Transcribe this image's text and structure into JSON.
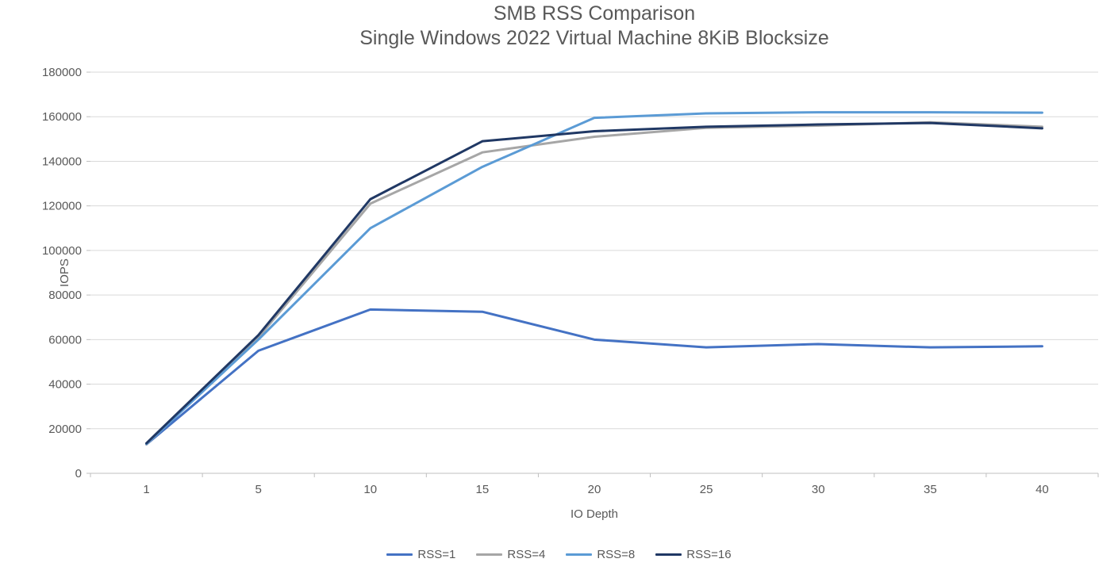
{
  "title": "SMB RSS Comparison",
  "subtitle": "Single Windows 2022 Virtual Machine 8KiB Blocksize",
  "chart_data": {
    "type": "line",
    "x": [
      1,
      5,
      10,
      15,
      20,
      25,
      30,
      35,
      40
    ],
    "xlabel": "IO Depth",
    "ylabel": "IOPS",
    "ylim": [
      0,
      180000
    ],
    "ytick_step": 20000,
    "grid": true,
    "legend_position": "bottom",
    "series": [
      {
        "name": "RSS=1",
        "color": "#4472C4",
        "values": [
          13000,
          55000,
          73500,
          72500,
          60000,
          56500,
          58000,
          56500,
          57000
        ]
      },
      {
        "name": "RSS=4",
        "color": "#A6A6A6",
        "values": [
          13000,
          61000,
          121000,
          144000,
          151000,
          155000,
          156000,
          157500,
          155500
        ]
      },
      {
        "name": "RSS=8",
        "color": "#5B9BD5",
        "values": [
          13200,
          60000,
          110000,
          137500,
          159500,
          161500,
          162000,
          162000,
          161800
        ]
      },
      {
        "name": "RSS=16",
        "color": "#203864",
        "values": [
          13500,
          62000,
          123000,
          149000,
          153500,
          155500,
          156500,
          157200,
          154800
        ]
      }
    ]
  },
  "colors": {
    "text": "#595959",
    "gridline": "#D9D9D9",
    "axis": "#BFBFBF"
  }
}
